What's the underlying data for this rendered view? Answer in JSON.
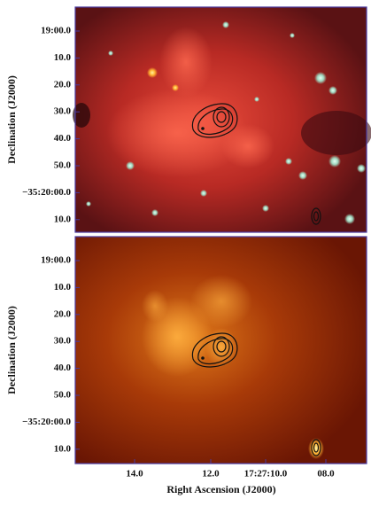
{
  "panels": [
    {
      "y_label": "Declination (J2000)",
      "y_ticks": [
        "19:00.0",
        "10.0",
        "20.0",
        "30.0",
        "40.0",
        "50.0",
        "−35:20:00.0",
        "10.0"
      ]
    },
    {
      "y_label": "Declination (J2000)",
      "y_ticks": [
        "19:00.0",
        "10.0",
        "20.0",
        "30.0",
        "40.0",
        "50.0",
        "−35:20:00.0",
        "10.0"
      ]
    }
  ],
  "x_ticks": [
    "14.0",
    "12.0",
    "17:27:10.0",
    "08.0"
  ],
  "x_label": "Right Ascension (J2000)"
}
